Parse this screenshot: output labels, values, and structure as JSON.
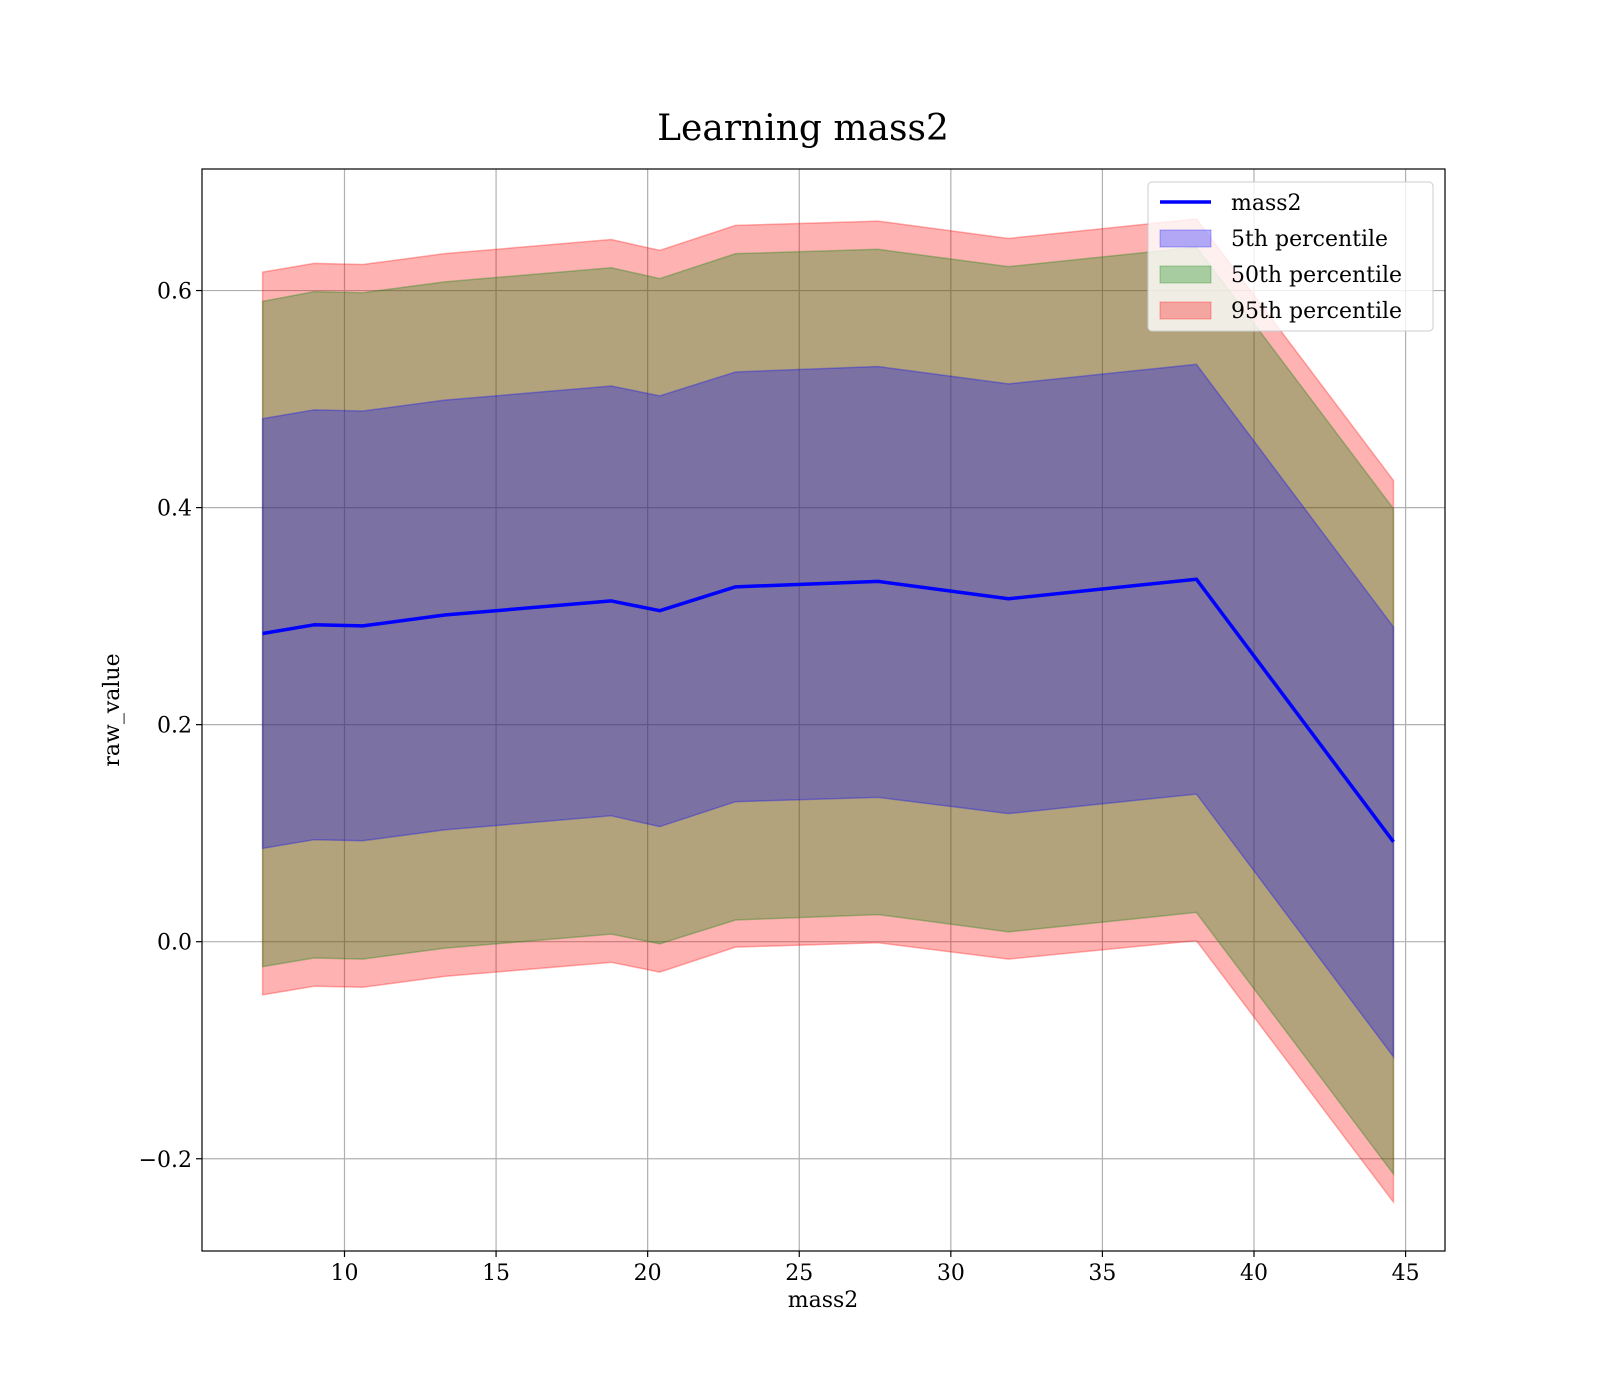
{
  "chart_data": {
    "type": "area",
    "title": "Learning mass2",
    "xlabel": "mass2",
    "ylabel": "raw_value",
    "xlim": [
      5.3,
      46.3
    ],
    "ylim": [
      -0.285,
      0.712
    ],
    "grid": true,
    "legend_position": "top-right",
    "x_ticks": [
      10,
      15,
      20,
      25,
      30,
      35,
      40,
      45
    ],
    "x_tick_labels": [
      "10",
      "15",
      "20",
      "25",
      "30",
      "35",
      "40",
      "45"
    ],
    "y_ticks": [
      -0.2,
      0.0,
      0.2,
      0.4,
      0.6
    ],
    "y_tick_labels": [
      "−0.2",
      "0.0",
      "0.2",
      "0.4",
      "0.6"
    ],
    "x": [
      7.3,
      9.0,
      10.6,
      13.3,
      18.8,
      20.4,
      22.9,
      27.6,
      31.9,
      38.1,
      44.6
    ],
    "series": [
      {
        "name": "mass2",
        "kind": "line",
        "color": "#0000ff",
        "values": [
          0.284,
          0.292,
          0.291,
          0.301,
          0.314,
          0.305,
          0.327,
          0.332,
          0.316,
          0.334,
          0.092
        ]
      },
      {
        "name": "5th percentile",
        "kind": "band",
        "color": "#0000ff",
        "lower": [
          0.086,
          0.094,
          0.093,
          0.103,
          0.116,
          0.106,
          0.129,
          0.133,
          0.118,
          0.136,
          -0.106
        ],
        "upper": [
          0.482,
          0.49,
          0.489,
          0.499,
          0.512,
          0.503,
          0.525,
          0.53,
          0.514,
          0.532,
          0.29
        ]
      },
      {
        "name": "50th percentile",
        "kind": "band",
        "color": "#008000",
        "lower": [
          -0.023,
          -0.015,
          -0.016,
          -0.006,
          0.007,
          -0.002,
          0.02,
          0.025,
          0.009,
          0.027,
          -0.214
        ],
        "upper": [
          0.59,
          0.599,
          0.598,
          0.608,
          0.621,
          0.611,
          0.634,
          0.638,
          0.622,
          0.64,
          0.399
        ]
      },
      {
        "name": "95th percentile",
        "kind": "band",
        "color": "#ff0000",
        "lower": [
          -0.049,
          -0.041,
          -0.042,
          -0.032,
          -0.019,
          -0.028,
          -0.005,
          -0.001,
          -0.016,
          0.001,
          -0.24
        ],
        "upper": [
          0.617,
          0.625,
          0.624,
          0.634,
          0.647,
          0.637,
          0.66,
          0.664,
          0.648,
          0.666,
          0.425
        ]
      }
    ],
    "legend": [
      {
        "label": "mass2",
        "kind": "line",
        "color": "#0000ff"
      },
      {
        "label": "5th percentile",
        "kind": "patch",
        "color": "#0000ff"
      },
      {
        "label": "50th percentile",
        "kind": "patch",
        "color": "#008000"
      },
      {
        "label": "95th percentile",
        "kind": "patch",
        "color": "#ff0000"
      }
    ]
  }
}
